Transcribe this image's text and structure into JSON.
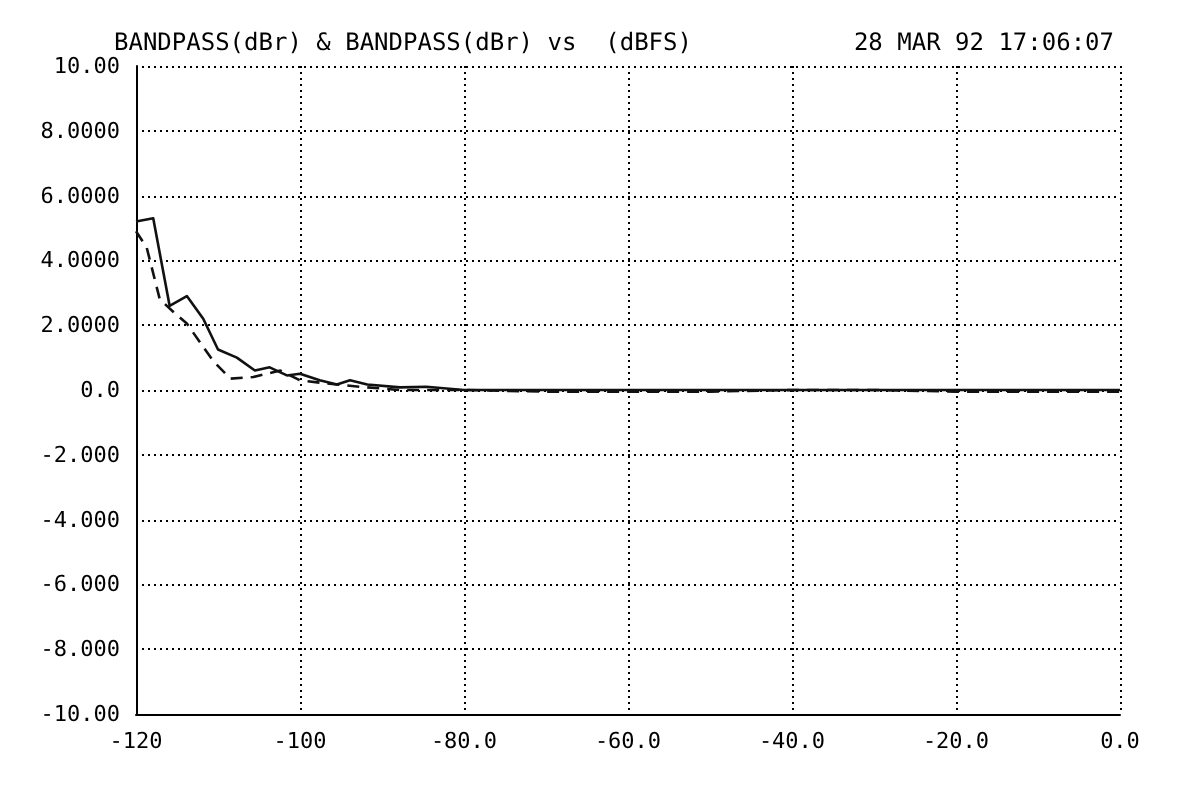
{
  "chart_data": {
    "type": "line",
    "title": "BANDPASS(dBr) & BANDPASS(dBr) vs  (dBFS)",
    "subtitle": "28 MAR 92 17:06:07",
    "series": [
      {
        "color": "#111111",
        "line_style": "solid",
        "x": [
          -120,
          -117.9,
          -115.9,
          -113.8,
          -111.8,
          -110,
          -107.7,
          -105.5,
          -103.7,
          -101.6,
          -100,
          -97.6,
          -95.5,
          -93.9,
          -91.8,
          -87.8,
          -84.6,
          -80,
          -60,
          -40,
          -20,
          0
        ],
        "values": [
          5.2,
          5.3,
          2.6,
          2.9,
          2.2,
          1.25,
          1.0,
          0.6,
          0.7,
          0.45,
          0.5,
          0.3,
          0.17,
          0.3,
          0.17,
          0.08,
          0.1,
          0,
          0,
          0,
          0,
          0
        ]
      },
      {
        "color": "#111111",
        "line_style": "dashed",
        "x": [
          -120,
          -118.7,
          -117.1,
          -115.4,
          -113.8,
          -110.6,
          -108.5,
          -105.7,
          -102.4,
          -100,
          -96.7,
          -92.7,
          -87.8,
          -80,
          -70,
          -60,
          -50,
          -40,
          -30,
          -20,
          -10,
          0
        ],
        "values": [
          4.9,
          4.4,
          2.8,
          2.4,
          2.05,
          0.9,
          0.35,
          0.4,
          0.6,
          0.3,
          0.2,
          0.1,
          0,
          0,
          -0.05,
          -0.05,
          -0.05,
          0,
          0,
          -0.05,
          -0.05,
          -0.05
        ]
      }
    ],
    "xlim": [
      -120,
      0
    ],
    "xticks": [
      {
        "value": -120,
        "label": "-120"
      },
      {
        "value": -100,
        "label": "-100"
      },
      {
        "value": -80,
        "label": "-80.0"
      },
      {
        "value": -60,
        "label": "-60.0"
      },
      {
        "value": -40,
        "label": "-40.0"
      },
      {
        "value": -20,
        "label": "-20.0"
      },
      {
        "value": 0,
        "label": "0.0"
      }
    ],
    "ylim": [
      -10,
      10
    ],
    "yticks": [
      {
        "value": -10,
        "label": "-10.00"
      },
      {
        "value": -8,
        "label": "-8.000"
      },
      {
        "value": -6,
        "label": "-6.000"
      },
      {
        "value": -4,
        "label": "-4.000"
      },
      {
        "value": -2,
        "label": "-2.000"
      },
      {
        "value": 0,
        "label": "0.0"
      },
      {
        "value": 2,
        "label": "2.0000"
      },
      {
        "value": 4,
        "label": "4.0000"
      },
      {
        "value": 6,
        "label": "6.0000"
      },
      {
        "value": 8,
        "label": "8.0000"
      },
      {
        "value": 10,
        "label": "10.00"
      }
    ],
    "grid": true,
    "marker": "none"
  }
}
